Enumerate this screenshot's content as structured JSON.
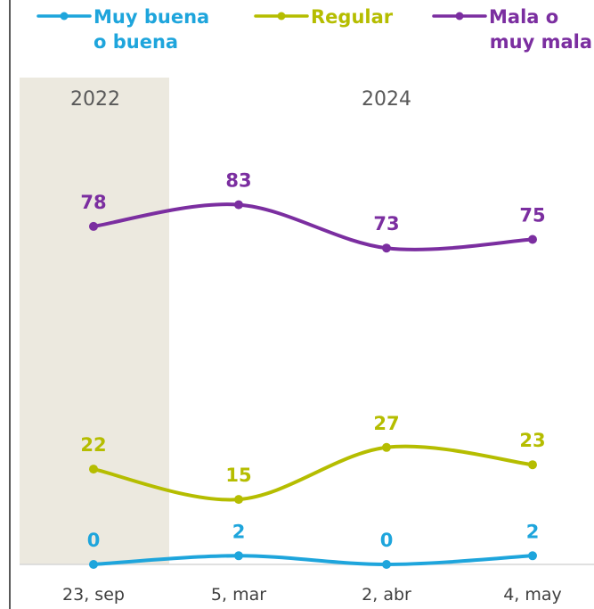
{
  "chart_data": {
    "type": "line",
    "categories": [
      "23, sep",
      "5, mar",
      "2, abr",
      "4, may"
    ],
    "periods": [
      {
        "label": "2022",
        "from": 0,
        "to": 0,
        "shaded": true
      },
      {
        "label": "2024",
        "from": 1,
        "to": 3,
        "shaded": false
      }
    ],
    "series": [
      {
        "name_lines": [
          "Muy buena",
          "o buena"
        ],
        "color": "#1ea5dc",
        "values": [
          0,
          2,
          0,
          2
        ]
      },
      {
        "name_lines": [
          "Regular"
        ],
        "color": "#b5bd00",
        "values": [
          22,
          15,
          27,
          23
        ]
      },
      {
        "name_lines": [
          "Mala o",
          "muy mala"
        ],
        "color": "#7b2ea0",
        "values": [
          78,
          83,
          73,
          75
        ]
      }
    ],
    "ylim": [
      0,
      100
    ],
    "legend": "top",
    "grid": false,
    "shade_color": "#ece9df"
  }
}
